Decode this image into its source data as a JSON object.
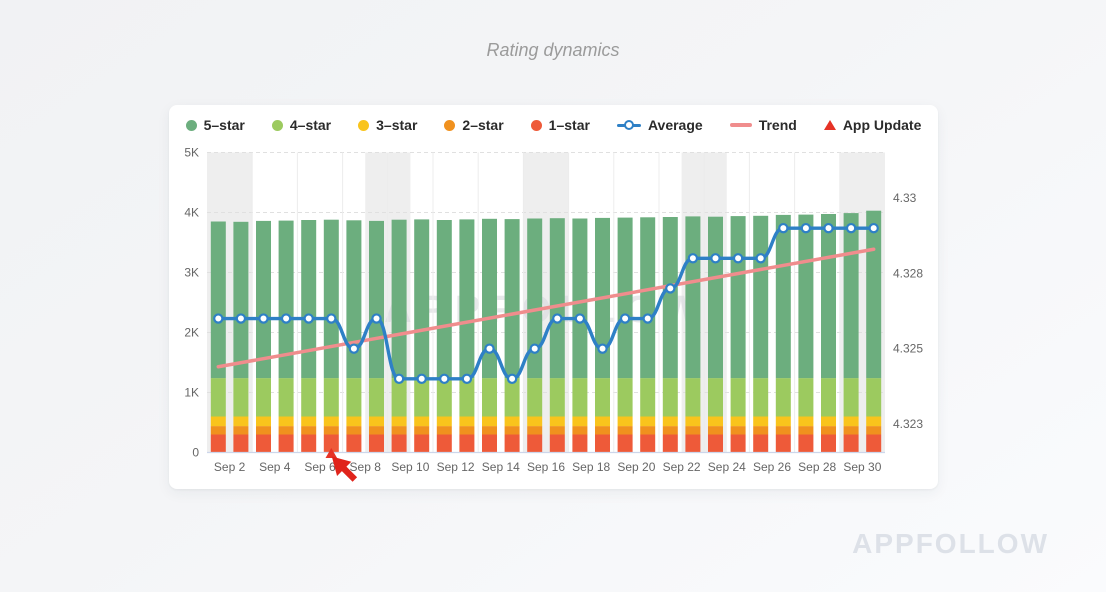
{
  "page": {
    "title": "Rating dynamics",
    "watermark": "APPFOLLOW",
    "brand": "APPFOLLOW"
  },
  "legend": [
    {
      "label": "5–star",
      "icon": "dot",
      "color": "#6cae7e"
    },
    {
      "label": "4–star",
      "icon": "dot",
      "color": "#9cca5f"
    },
    {
      "label": "3–star",
      "icon": "dot",
      "color": "#f9c41c"
    },
    {
      "label": "2–star",
      "icon": "dot",
      "color": "#f0911e"
    },
    {
      "label": "1–star",
      "icon": "dot",
      "color": "#ee5a39"
    },
    {
      "label": "Average",
      "icon": "linedot",
      "color": "#2e80c6"
    },
    {
      "label": "Trend",
      "icon": "line",
      "color": "#f08d8d"
    },
    {
      "label": "App Update",
      "icon": "tri",
      "color": "#e63226"
    }
  ],
  "chart_data": {
    "type": "bar",
    "subtype": "stacked-bars-with-line-overlay",
    "title": "Rating dynamics",
    "legend_position": "top",
    "grid": true,
    "categories": [
      "Sep 1",
      "Sep 2",
      "Sep 3",
      "Sep 4",
      "Sep 5",
      "Sep 6",
      "Sep 7",
      "Sep 8",
      "Sep 9",
      "Sep 10",
      "Sep 11",
      "Sep 12",
      "Sep 13",
      "Sep 14",
      "Sep 15",
      "Sep 16",
      "Sep 17",
      "Sep 18",
      "Sep 19",
      "Sep 20",
      "Sep 21",
      "Sep 22",
      "Sep 23",
      "Sep 24",
      "Sep 25",
      "Sep 26",
      "Sep 27",
      "Sep 28",
      "Sep 29",
      "Sep 30"
    ],
    "x_labels_shown": [
      "Sep 2",
      "Sep 4",
      "Sep 6",
      "Sep 8",
      "Sep 10",
      "Sep 12",
      "Sep 14",
      "Sep 16",
      "Sep 18",
      "Sep 20",
      "Sep 22",
      "Sep 24",
      "Sep 26",
      "Sep 28",
      "Sep 30"
    ],
    "series": [
      {
        "name": "1-star",
        "type": "bar",
        "color": "#ee5a39",
        "values": [
          300,
          300,
          300,
          300,
          300,
          300,
          300,
          300,
          300,
          300,
          300,
          300,
          300,
          300,
          300,
          300,
          300,
          300,
          300,
          300,
          300,
          300,
          300,
          300,
          300,
          300,
          300,
          300,
          300,
          300
        ]
      },
      {
        "name": "2-star",
        "type": "bar",
        "color": "#f0911e",
        "values": [
          140,
          140,
          140,
          140,
          140,
          140,
          140,
          140,
          140,
          140,
          140,
          140,
          140,
          140,
          140,
          140,
          140,
          140,
          140,
          140,
          140,
          140,
          140,
          140,
          140,
          140,
          140,
          140,
          140,
          140
        ]
      },
      {
        "name": "3-star",
        "type": "bar",
        "color": "#f9c41c",
        "values": [
          160,
          160,
          160,
          160,
          160,
          160,
          160,
          160,
          160,
          160,
          160,
          160,
          160,
          160,
          160,
          160,
          160,
          160,
          160,
          160,
          160,
          160,
          160,
          160,
          160,
          160,
          160,
          160,
          160,
          160
        ]
      },
      {
        "name": "4-star",
        "type": "bar",
        "color": "#9cca5f",
        "values": [
          640,
          640,
          640,
          640,
          640,
          640,
          640,
          640,
          640,
          640,
          640,
          640,
          640,
          640,
          640,
          640,
          640,
          640,
          640,
          640,
          640,
          640,
          640,
          640,
          640,
          640,
          640,
          640,
          640,
          640
        ]
      },
      {
        "name": "5-star",
        "type": "bar",
        "color": "#6cae7e",
        "values": [
          2610,
          2605,
          2620,
          2625,
          2635,
          2640,
          2630,
          2620,
          2640,
          2645,
          2635,
          2645,
          2655,
          2650,
          2660,
          2665,
          2660,
          2670,
          2675,
          2680,
          2685,
          2695,
          2690,
          2700,
          2705,
          2720,
          2725,
          2735,
          2750,
          2790
        ]
      },
      {
        "name": "Average",
        "type": "line",
        "axis": "right",
        "color": "#2e80c6",
        "values": [
          4.326,
          4.326,
          4.326,
          4.326,
          4.326,
          4.326,
          4.325,
          4.326,
          4.324,
          4.324,
          4.324,
          4.324,
          4.325,
          4.324,
          4.325,
          4.326,
          4.326,
          4.325,
          4.326,
          4.326,
          4.327,
          4.328,
          4.328,
          4.328,
          4.328,
          4.329,
          4.329,
          4.329,
          4.329,
          4.329
        ]
      },
      {
        "name": "Trend",
        "type": "trendline",
        "axis": "right",
        "color": "#f08d8d",
        "start": 4.3244,
        "end": 4.3283
      },
      {
        "name": "App Update",
        "type": "event-marker",
        "color": "#e63226",
        "days": [
          "Sep 6"
        ]
      }
    ],
    "left_axis": {
      "min": 0,
      "max": 5000,
      "ticks": [
        {
          "v": 5000,
          "label": "5K"
        },
        {
          "v": 4000,
          "label": "4K"
        },
        {
          "v": 3000,
          "label": "3K"
        },
        {
          "v": 2000,
          "label": "2K"
        },
        {
          "v": 1000,
          "label": "1K"
        },
        {
          "v": 0,
          "label": "0"
        }
      ]
    },
    "right_axis": {
      "min": 4.3216,
      "max": 4.3315,
      "ticks": [
        {
          "v": 4.33,
          "label": "4.33"
        },
        {
          "v": 4.3275,
          "label": "4.328"
        },
        {
          "v": 4.325,
          "label": "4.325"
        },
        {
          "v": 4.3225,
          "label": "4.323"
        }
      ]
    },
    "weekend_bands": [
      [
        1,
        2
      ],
      [
        8,
        9
      ],
      [
        15,
        16
      ],
      [
        22,
        23
      ],
      [
        29,
        30
      ]
    ]
  }
}
